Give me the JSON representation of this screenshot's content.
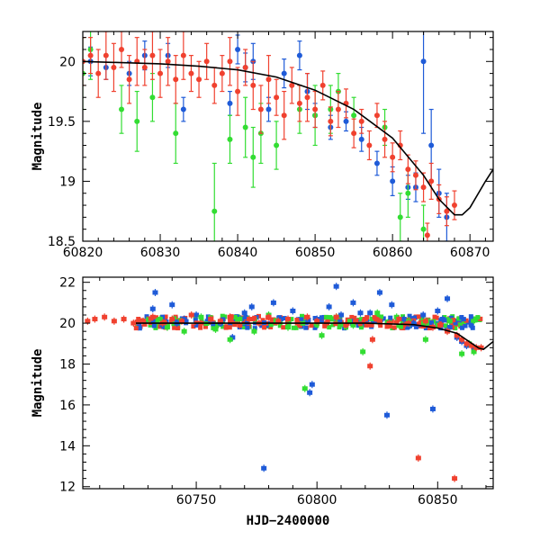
{
  "chart_data": [
    {
      "type": "scatter",
      "title": "",
      "xlabel": "",
      "ylabel": "Magnitude",
      "xlim": [
        60820,
        60873
      ],
      "ylim": [
        20.25,
        18.5
      ],
      "y_inverted": true,
      "grid": false,
      "xticks": [
        60820,
        60830,
        60840,
        60850,
        60860,
        60870
      ],
      "yticks": [
        18.5,
        19,
        19.5,
        20
      ],
      "ytick_labels": [
        "18.5",
        "19",
        "19.5",
        "20"
      ],
      "colors": {
        "blue": "#1f5bd8",
        "green": "#33dd33",
        "red": "#f0412f",
        "model": "#000000"
      },
      "model_curve": {
        "x": [
          60820,
          60825,
          60830,
          60835,
          60840,
          60845,
          60850,
          60855,
          60860,
          60864,
          60866,
          60868,
          60869,
          60870,
          60872,
          60873
        ],
        "y": [
          20.0,
          19.99,
          19.98,
          19.96,
          19.93,
          19.87,
          19.76,
          19.6,
          19.36,
          19.05,
          18.85,
          18.72,
          18.72,
          18.78,
          19.0,
          19.1
        ]
      },
      "series": [
        {
          "color": "blue",
          "points": [
            [
              60821,
              20.0,
              0.12
            ],
            [
              60823,
              19.95,
              0.1
            ],
            [
              60826,
              19.9,
              0.1
            ],
            [
              60828,
              20.05,
              0.12
            ],
            [
              60831,
              20.05,
              0.1
            ],
            [
              60833,
              19.6,
              0.1
            ],
            [
              60839,
              19.65,
              0.1
            ],
            [
              60840,
              20.1,
              0.12
            ],
            [
              60841,
              19.95,
              0.12
            ],
            [
              60842,
              20.0,
              0.15
            ],
            [
              60844,
              19.6,
              0.1
            ],
            [
              60846,
              19.9,
              0.12
            ],
            [
              60848,
              20.05,
              0.12
            ],
            [
              60849,
              19.75,
              0.15
            ],
            [
              60850,
              19.55,
              0.1
            ],
            [
              60852,
              19.45,
              0.1
            ],
            [
              60854,
              19.5,
              0.08
            ],
            [
              60856,
              19.35,
              0.1
            ],
            [
              60858,
              19.15,
              0.1
            ],
            [
              60860,
              19.0,
              0.12
            ],
            [
              60862,
              18.95,
              0.1
            ],
            [
              60863,
              18.95,
              0.12
            ],
            [
              60864,
              20.0,
              0.6
            ],
            [
              60865,
              19.3,
              0.3
            ],
            [
              60866,
              18.9,
              0.2
            ],
            [
              60867,
              18.7,
              0.2
            ]
          ]
        },
        {
          "color": "green",
          "points": [
            [
              60820,
              19.9,
              0.3
            ],
            [
              60821,
              20.1,
              0.25
            ],
            [
              60825,
              19.6,
              0.2
            ],
            [
              60827,
              19.5,
              0.25
            ],
            [
              60829,
              19.7,
              0.2
            ],
            [
              60832,
              19.4,
              0.25
            ],
            [
              60837,
              18.75,
              0.4
            ],
            [
              60839,
              19.35,
              0.2
            ],
            [
              60841,
              19.45,
              0.25
            ],
            [
              60842,
              19.2,
              0.25
            ],
            [
              60843,
              19.4,
              0.25
            ],
            [
              60845,
              19.3,
              0.2
            ],
            [
              60848,
              19.6,
              0.2
            ],
            [
              60850,
              19.55,
              0.25
            ],
            [
              60852,
              19.6,
              0.2
            ],
            [
              60853,
              19.75,
              0.15
            ],
            [
              60855,
              19.55,
              0.15
            ],
            [
              60859,
              19.45,
              0.15
            ],
            [
              60861,
              18.7,
              0.2
            ],
            [
              60862,
              18.9,
              0.2
            ],
            [
              60864,
              18.6,
              0.2
            ]
          ]
        },
        {
          "color": "red",
          "points": [
            [
              60820,
              20.0,
              0.2
            ],
            [
              60821,
              20.05,
              0.15
            ],
            [
              60822,
              19.9,
              0.2
            ],
            [
              60823,
              20.05,
              0.2
            ],
            [
              60824,
              19.95,
              0.2
            ],
            [
              60825,
              20.1,
              0.15
            ],
            [
              60826,
              19.85,
              0.2
            ],
            [
              60827,
              20.0,
              0.2
            ],
            [
              60828,
              19.95,
              0.15
            ],
            [
              60829,
              20.05,
              0.2
            ],
            [
              60830,
              19.9,
              0.2
            ],
            [
              60831,
              20.0,
              0.2
            ],
            [
              60832,
              19.85,
              0.2
            ],
            [
              60833,
              20.05,
              0.2
            ],
            [
              60834,
              19.9,
              0.15
            ],
            [
              60835,
              19.85,
              0.15
            ],
            [
              60836,
              20.0,
              0.15
            ],
            [
              60837,
              19.8,
              0.15
            ],
            [
              60838,
              19.9,
              0.15
            ],
            [
              60839,
              20.0,
              0.2
            ],
            [
              60840,
              19.75,
              0.2
            ],
            [
              60841,
              19.95,
              0.15
            ],
            [
              60842,
              19.8,
              0.2
            ],
            [
              60843,
              19.6,
              0.2
            ],
            [
              60844,
              19.85,
              0.2
            ],
            [
              60845,
              19.7,
              0.15
            ],
            [
              60846,
              19.55,
              0.2
            ],
            [
              60847,
              19.8,
              0.15
            ],
            [
              60848,
              19.65,
              0.15
            ],
            [
              60849,
              19.7,
              0.2
            ],
            [
              60850,
              19.6,
              0.15
            ],
            [
              60851,
              19.8,
              0.12
            ],
            [
              60852,
              19.5,
              0.12
            ],
            [
              60853,
              19.6,
              0.15
            ],
            [
              60854,
              19.65,
              0.12
            ],
            [
              60855,
              19.4,
              0.12
            ],
            [
              60856,
              19.5,
              0.1
            ],
            [
              60857,
              19.3,
              0.12
            ],
            [
              60858,
              19.55,
              0.1
            ],
            [
              60859,
              19.35,
              0.15
            ],
            [
              60860,
              19.2,
              0.12
            ],
            [
              60861,
              19.3,
              0.12
            ],
            [
              60862,
              19.1,
              0.12
            ],
            [
              60863,
              19.05,
              0.12
            ],
            [
              60864,
              18.95,
              0.12
            ],
            [
              60865,
              19.0,
              0.15
            ],
            [
              60866,
              18.85,
              0.12
            ],
            [
              60867,
              18.75,
              0.12
            ],
            [
              60868,
              18.8,
              0.12
            ],
            [
              60864.5,
              18.55,
              0.1
            ]
          ]
        }
      ]
    },
    {
      "type": "scatter",
      "title": "",
      "xlabel": "HJD−2400000",
      "ylabel": "Magnitude",
      "xlim": [
        60703,
        60873
      ],
      "ylim": [
        22.25,
        11.9
      ],
      "y_inverted": true,
      "grid": false,
      "xticks": [
        60750,
        60800,
        60850
      ],
      "yticks": [
        12,
        14,
        16,
        18,
        20,
        22
      ],
      "ytick_labels": [
        "12",
        "14",
        "16",
        "18",
        "20",
        "22"
      ],
      "colors": {
        "blue": "#1f5bd8",
        "green": "#33dd33",
        "red": "#f0412f",
        "model": "#000000"
      },
      "model_curve": {
        "x": [
          60725,
          60750,
          60775,
          60800,
          60820,
          60840,
          60850,
          60858,
          60863,
          60867,
          60869,
          60873
        ],
        "y": [
          20.0,
          20.0,
          20.0,
          20.0,
          20.0,
          19.93,
          19.76,
          19.5,
          19.1,
          18.78,
          18.72,
          19.1
        ]
      },
      "series": [
        {
          "color": "blue",
          "points": [
            [
              60732,
              20.7
            ],
            [
              60733,
              21.5
            ],
            [
              60740,
              20.9
            ],
            [
              60742,
              20.0
            ],
            [
              60745,
              20.2
            ],
            [
              60750,
              20.4
            ],
            [
              60760,
              20.0
            ],
            [
              60765,
              19.3
            ],
            [
              60770,
              20.5
            ],
            [
              60773,
              20.8
            ],
            [
              60778,
              12.9
            ],
            [
              60782,
              21.0
            ],
            [
              60785,
              20.2
            ],
            [
              60790,
              20.6
            ],
            [
              60797,
              16.6
            ],
            [
              60798,
              17.0
            ],
            [
              60800,
              20.2
            ],
            [
              60805,
              20.8
            ],
            [
              60808,
              21.8
            ],
            [
              60810,
              20.4
            ],
            [
              60815,
              21.0
            ],
            [
              60818,
              20.5
            ],
            [
              60822,
              20.5
            ],
            [
              60826,
              21.5
            ],
            [
              60829,
              15.5
            ],
            [
              60831,
              20.9
            ],
            [
              60836,
              20.2
            ],
            [
              60840,
              20.0
            ],
            [
              60844,
              20.4
            ],
            [
              60848,
              15.8
            ],
            [
              60850,
              20.6
            ],
            [
              60852,
              20.2
            ],
            [
              60854,
              21.2
            ],
            [
              60855,
              19.8
            ],
            [
              60858,
              19.3
            ],
            [
              60860,
              19.1
            ],
            [
              60862,
              18.9
            ],
            [
              60865,
              18.8
            ]
          ]
        },
        {
          "color": "green",
          "points": [
            [
              60735,
              20.2
            ],
            [
              60738,
              19.8
            ],
            [
              60745,
              19.6
            ],
            [
              60752,
              20.3
            ],
            [
              60758,
              19.7
            ],
            [
              60764,
              19.2
            ],
            [
              60768,
              20.2
            ],
            [
              60774,
              19.6
            ],
            [
              60780,
              20.4
            ],
            [
              60788,
              19.8
            ],
            [
              60795,
              16.8
            ],
            [
              60802,
              19.4
            ],
            [
              60808,
              20.3
            ],
            [
              60815,
              19.9
            ],
            [
              60819,
              18.6
            ],
            [
              60825,
              20.5
            ],
            [
              60833,
              20.3
            ],
            [
              60838,
              20.1
            ],
            [
              60845,
              19.2
            ],
            [
              60850,
              19.9
            ],
            [
              60855,
              20.1
            ],
            [
              60860,
              18.5
            ],
            [
              60863,
              19.0
            ],
            [
              60865,
              18.6
            ]
          ]
        },
        {
          "color": "red",
          "points": [
            [
              60705,
              20.1
            ],
            [
              60708,
              20.2
            ],
            [
              60712,
              20.3
            ],
            [
              60716,
              20.1
            ],
            [
              60720,
              20.2
            ],
            [
              60724,
              20.0
            ],
            [
              60728,
              20.1
            ],
            [
              60732,
              20.3
            ],
            [
              60736,
              20.0
            ],
            [
              60740,
              20.2
            ],
            [
              60744,
              20.1
            ],
            [
              60748,
              20.4
            ],
            [
              60752,
              20.0
            ],
            [
              60756,
              20.2
            ],
            [
              60760,
              20.1
            ],
            [
              60764,
              20.3
            ],
            [
              60768,
              19.9
            ],
            [
              60772,
              20.2
            ],
            [
              60776,
              20.0
            ],
            [
              60780,
              20.3
            ],
            [
              60784,
              20.1
            ],
            [
              60788,
              20.2
            ],
            [
              60792,
              20.0
            ],
            [
              60796,
              20.3
            ],
            [
              60800,
              20.1
            ],
            [
              60804,
              20.0
            ],
            [
              60808,
              20.3
            ],
            [
              60812,
              19.9
            ],
            [
              60816,
              20.1
            ],
            [
              60820,
              20.2
            ],
            [
              60822,
              17.9
            ],
            [
              60823,
              19.2
            ],
            [
              60826,
              20.1
            ],
            [
              60830,
              20.0
            ],
            [
              60834,
              20.2
            ],
            [
              60838,
              20.0
            ],
            [
              60842,
              13.4
            ],
            [
              60845,
              20.1
            ],
            [
              60848,
              19.8
            ],
            [
              60851,
              19.9
            ],
            [
              60854,
              19.6
            ],
            [
              60857,
              12.4
            ],
            [
              60858,
              19.4
            ],
            [
              60860,
              19.2
            ],
            [
              60862,
              19.0
            ],
            [
              60864,
              18.9
            ],
            [
              60866,
              18.8
            ],
            [
              60868,
              18.8
            ]
          ]
        }
      ],
      "dense_band": {
        "x_range": [
          60725,
          60868
        ],
        "center": 20.05
      }
    }
  ]
}
